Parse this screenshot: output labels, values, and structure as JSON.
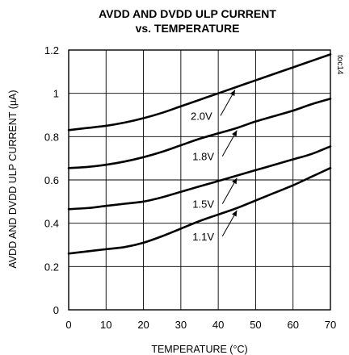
{
  "chart_data": {
    "type": "line",
    "title": [
      "AVDD AND DVDD ULP CURRENT",
      "vs. TEMPERATURE"
    ],
    "xlabel": "TEMPERATURE (°C)",
    "ylabel": "AVDD AND DVDD ULP CURRENT (µA)",
    "figure_code": "toc14",
    "xlim": [
      0,
      70
    ],
    "ylim": [
      0,
      1.2
    ],
    "x_ticks": [
      0,
      10,
      20,
      30,
      40,
      50,
      60,
      70
    ],
    "y_ticks": [
      0,
      0.2,
      0.4,
      0.6,
      0.8,
      1,
      1.2
    ],
    "x_tick_labels": [
      "0",
      "10",
      "20",
      "30",
      "40",
      "50",
      "60",
      "70"
    ],
    "y_tick_labels": [
      "0",
      "0.2",
      "0.4",
      "0.6",
      "0.8",
      "1",
      "1.2"
    ],
    "grid": true,
    "series": [
      {
        "name": "2.0V",
        "x": [
          0,
          5,
          10,
          15,
          20,
          25,
          30,
          35,
          40,
          45,
          50,
          55,
          60,
          65,
          70
        ],
        "y": [
          0.83,
          0.84,
          0.85,
          0.865,
          0.885,
          0.91,
          0.94,
          0.97,
          1.0,
          1.03,
          1.06,
          1.09,
          1.12,
          1.15,
          1.18
        ],
        "arrow_x": 44.5
      },
      {
        "name": "1.8V",
        "x": [
          0,
          5,
          10,
          15,
          20,
          25,
          30,
          35,
          40,
          45,
          50,
          55,
          60,
          65,
          70
        ],
        "y": [
          0.655,
          0.66,
          0.67,
          0.685,
          0.705,
          0.73,
          0.76,
          0.79,
          0.815,
          0.84,
          0.87,
          0.895,
          0.92,
          0.95,
          0.975
        ],
        "arrow_x": 45
      },
      {
        "name": "1.5V",
        "x": [
          0,
          5,
          10,
          15,
          20,
          25,
          30,
          35,
          40,
          45,
          50,
          55,
          60,
          65,
          70
        ],
        "y": [
          0.465,
          0.47,
          0.48,
          0.49,
          0.5,
          0.52,
          0.545,
          0.57,
          0.595,
          0.62,
          0.645,
          0.67,
          0.695,
          0.72,
          0.755
        ],
        "arrow_x": 45
      },
      {
        "name": "1.1V",
        "x": [
          0,
          5,
          10,
          15,
          20,
          25,
          30,
          35,
          40,
          45,
          50,
          55,
          60,
          65,
          70
        ],
        "y": [
          0.26,
          0.27,
          0.28,
          0.29,
          0.31,
          0.34,
          0.375,
          0.41,
          0.44,
          0.47,
          0.505,
          0.54,
          0.575,
          0.615,
          0.655
        ],
        "arrow_x": 45
      }
    ]
  }
}
